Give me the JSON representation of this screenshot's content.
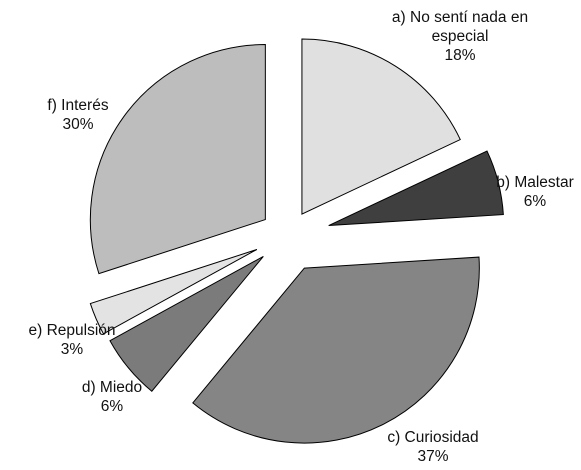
{
  "chart_data": {
    "type": "pie",
    "title": "",
    "exploded": true,
    "slices": [
      {
        "label": "a) No sentí nada en especial",
        "label_lines": [
          "a) No sentí nada en",
          "especial"
        ],
        "value": 18,
        "percent_label": "18%",
        "color": "#e0e0e0"
      },
      {
        "label": "b) Malestar",
        "label_lines": [
          "b) Malestar"
        ],
        "value": 6,
        "percent_label": "6%",
        "color": "#3f3f3f"
      },
      {
        "label": "c) Curiosidad",
        "label_lines": [
          "c) Curiosidad"
        ],
        "value": 37,
        "percent_label": "37%",
        "color": "#858585"
      },
      {
        "label": "d) Miedo",
        "label_lines": [
          "d) Miedo"
        ],
        "value": 6,
        "percent_label": "6%",
        "color": "#7b7b7b"
      },
      {
        "label": "e) Repulsión",
        "label_lines": [
          "e) Repulsión"
        ],
        "value": 3,
        "percent_label": "3%",
        "color": "#e3e3e3"
      },
      {
        "label": "f) Interés",
        "label_lines": [
          "f) Interés"
        ],
        "value": 30,
        "percent_label": "30%",
        "color": "#bdbdbd"
      }
    ]
  }
}
